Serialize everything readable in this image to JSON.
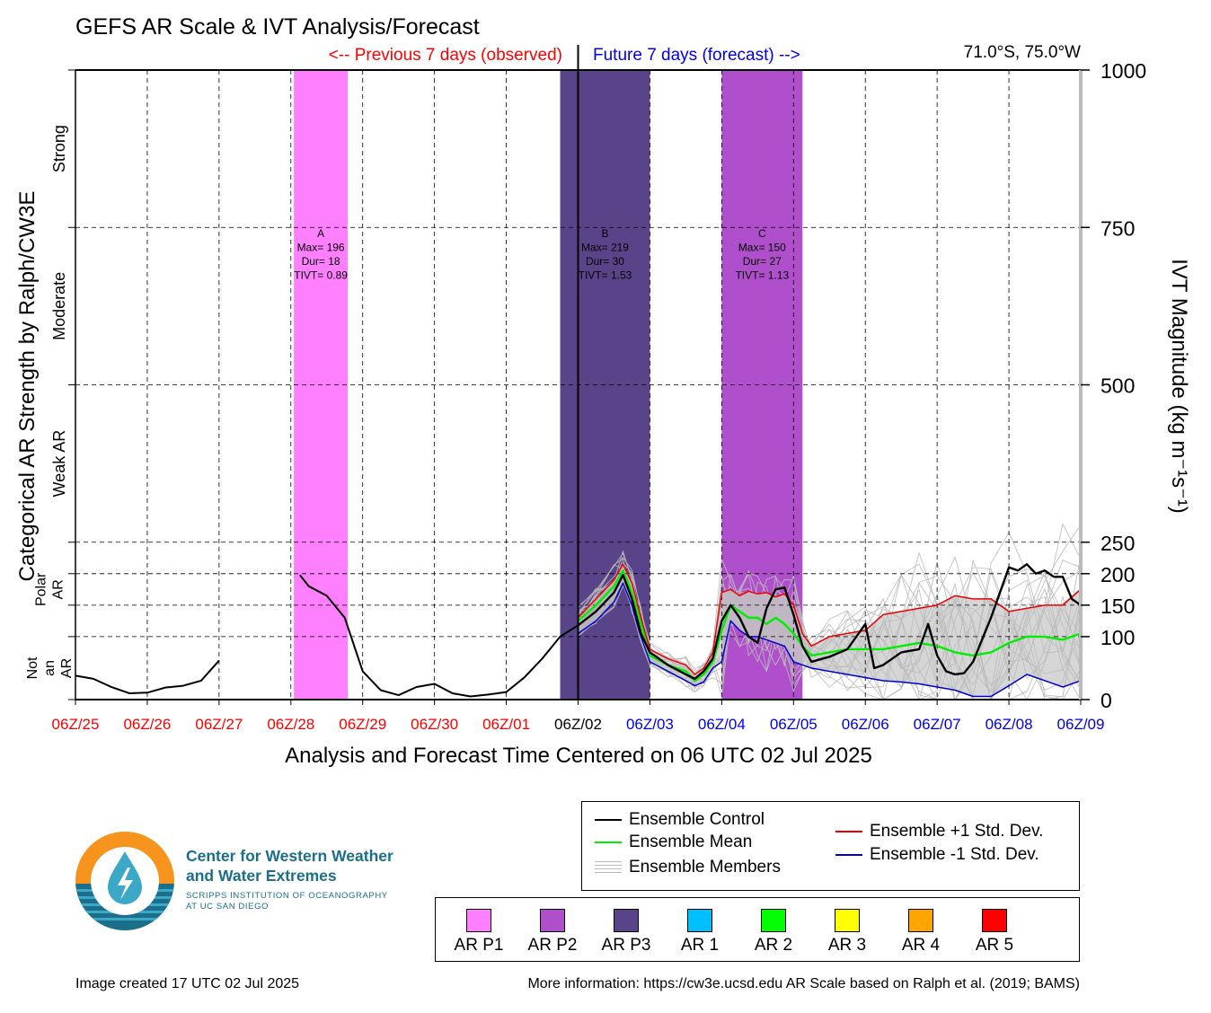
{
  "title": "GEFS AR Scale & IVT Analysis/Forecast",
  "location": "71.0°S, 75.0°W",
  "past_label": "<-- Previous 7 days (observed)",
  "future_label": "Future 7 days (forecast) -->",
  "left_axis_title": "Categorical AR Strength by Ralph/CW3E",
  "right_axis_title": "IVT Magnitude (kg m⁻¹s⁻¹)",
  "x_axis_title": "Analysis and Forecast Time Centered on 06 UTC 02 Jul 2025",
  "categories_left": [
    {
      "label": "Not an AR",
      "lo": 0,
      "hi": 100
    },
    {
      "label": "Polar AR",
      "lo": 100,
      "hi": 250
    },
    {
      "label": "Weak AR",
      "lo": 250,
      "hi": 500
    },
    {
      "label": "Moderate",
      "lo": 500,
      "hi": 750
    },
    {
      "label": "Strong",
      "lo": 750,
      "hi": 1000
    }
  ],
  "colors": {
    "past": "#ff0000",
    "future": "#0000ee",
    "now": "#000000",
    "control": "#000000",
    "mean": "#00ee00",
    "plus_sd": "#ee0000",
    "minus_sd": "#0000cc",
    "members": "#bbbbbb",
    "spread": "#cccccc"
  },
  "chart_data": {
    "type": "line",
    "x_unit": "hours since 06Z/25 Jun 2025",
    "x_ticks": [
      {
        "label": "06Z/25",
        "hour": 0,
        "color": "past"
      },
      {
        "label": "06Z/26",
        "hour": 24,
        "color": "past"
      },
      {
        "label": "06Z/27",
        "hour": 48,
        "color": "past"
      },
      {
        "label": "06Z/28",
        "hour": 72,
        "color": "past"
      },
      {
        "label": "06Z/29",
        "hour": 96,
        "color": "past"
      },
      {
        "label": "06Z/30",
        "hour": 120,
        "color": "past"
      },
      {
        "label": "06Z/01",
        "hour": 144,
        "color": "past"
      },
      {
        "label": "06Z/02",
        "hour": 168,
        "color": "now"
      },
      {
        "label": "06Z/03",
        "hour": 192,
        "color": "future"
      },
      {
        "label": "06Z/04",
        "hour": 216,
        "color": "future"
      },
      {
        "label": "06Z/05",
        "hour": 240,
        "color": "future"
      },
      {
        "label": "06Z/06",
        "hour": 264,
        "color": "future"
      },
      {
        "label": "06Z/07",
        "hour": 288,
        "color": "future"
      },
      {
        "label": "06Z/08",
        "hour": 312,
        "color": "future"
      },
      {
        "label": "06Z/09",
        "hour": 336,
        "color": "future"
      }
    ],
    "y_ticks": [
      0,
      100,
      150,
      200,
      250,
      500,
      750,
      1000
    ],
    "ylim": [
      0,
      1000
    ],
    "xlim": [
      0,
      336
    ],
    "now_hour": 168,
    "ar_events": [
      {
        "id": "A",
        "start": 73,
        "end": 91,
        "category": "AR P1",
        "color": "#ff80ff",
        "max": 196,
        "dur": 18,
        "tivt": 0.89,
        "text": [
          "A",
          "Max= 196",
          "Dur= 18",
          "TIVT= 0.89"
        ]
      },
      {
        "id": "B",
        "start": 162,
        "end": 192,
        "category": "AR P3",
        "color": "#5a4489",
        "max": 219,
        "dur": 30,
        "tivt": 1.53,
        "text": [
          "B",
          "Max= 219",
          "Dur= 30",
          "TIVT= 1.53"
        ]
      },
      {
        "id": "C",
        "start": 216,
        "end": 243,
        "category": "AR P2",
        "color": "#b04fcc",
        "max": 150,
        "dur": 27,
        "tivt": 1.13,
        "text": [
          "C",
          "Max= 150",
          "Dur= 27",
          "TIVT= 1.13"
        ]
      }
    ],
    "observed": {
      "name": "Ensemble Control",
      "segments": [
        [
          [
            0,
            38
          ],
          [
            6,
            33
          ],
          [
            12,
            20
          ],
          [
            18,
            10
          ],
          [
            24,
            11
          ],
          [
            30,
            19
          ],
          [
            36,
            22
          ],
          [
            42,
            30
          ],
          [
            48,
            62
          ]
        ],
        [
          [
            75,
            198
          ],
          [
            78,
            180
          ],
          [
            84,
            165
          ],
          [
            90,
            130
          ],
          [
            96,
            45
          ],
          [
            102,
            15
          ],
          [
            108,
            7
          ],
          [
            114,
            20
          ],
          [
            120,
            25
          ],
          [
            126,
            10
          ],
          [
            132,
            5
          ],
          [
            138,
            8
          ],
          [
            144,
            12
          ],
          [
            150,
            35
          ],
          [
            156,
            65
          ],
          [
            162,
            100
          ],
          [
            168,
            118
          ]
        ]
      ]
    },
    "series": [
      {
        "name": "Ensemble Mean",
        "color_key": "mean",
        "points": [
          [
            168,
            125
          ],
          [
            174,
            150
          ],
          [
            180,
            180
          ],
          [
            183,
            205
          ],
          [
            186,
            170
          ],
          [
            189,
            120
          ],
          [
            192,
            70
          ],
          [
            198,
            55
          ],
          [
            204,
            45
          ],
          [
            207,
            30
          ],
          [
            210,
            40
          ],
          [
            213,
            60
          ],
          [
            216,
            110
          ],
          [
            219,
            150
          ],
          [
            222,
            140
          ],
          [
            225,
            130
          ],
          [
            228,
            130
          ],
          [
            231,
            120
          ],
          [
            234,
            130
          ],
          [
            237,
            120
          ],
          [
            240,
            105
          ],
          [
            243,
            85
          ],
          [
            246,
            70
          ],
          [
            252,
            75
          ],
          [
            258,
            80
          ],
          [
            264,
            80
          ],
          [
            270,
            80
          ],
          [
            276,
            85
          ],
          [
            282,
            90
          ],
          [
            288,
            85
          ],
          [
            294,
            75
          ],
          [
            300,
            70
          ],
          [
            306,
            75
          ],
          [
            312,
            90
          ],
          [
            318,
            100
          ],
          [
            324,
            100
          ],
          [
            330,
            95
          ],
          [
            336,
            105
          ]
        ]
      },
      {
        "name": "Ensemble +1 Std. Dev.",
        "color_key": "plus_sd",
        "points": [
          [
            168,
            130
          ],
          [
            174,
            160
          ],
          [
            180,
            190
          ],
          [
            183,
            215
          ],
          [
            186,
            185
          ],
          [
            189,
            130
          ],
          [
            192,
            80
          ],
          [
            198,
            65
          ],
          [
            204,
            55
          ],
          [
            207,
            40
          ],
          [
            210,
            50
          ],
          [
            213,
            75
          ],
          [
            216,
            170
          ],
          [
            219,
            175
          ],
          [
            222,
            165
          ],
          [
            225,
            172
          ],
          [
            228,
            168
          ],
          [
            231,
            170
          ],
          [
            234,
            163
          ],
          [
            237,
            168
          ],
          [
            240,
            150
          ],
          [
            243,
            105
          ],
          [
            246,
            85
          ],
          [
            252,
            100
          ],
          [
            258,
            105
          ],
          [
            264,
            110
          ],
          [
            270,
            135
          ],
          [
            276,
            140
          ],
          [
            282,
            145
          ],
          [
            288,
            150
          ],
          [
            294,
            165
          ],
          [
            300,
            160
          ],
          [
            306,
            160
          ],
          [
            312,
            140
          ],
          [
            318,
            145
          ],
          [
            324,
            150
          ],
          [
            330,
            150
          ],
          [
            336,
            175
          ]
        ]
      },
      {
        "name": "Ensemble -1 Std. Dev.",
        "color_key": "minus_sd",
        "points": [
          [
            168,
            105
          ],
          [
            174,
            125
          ],
          [
            180,
            155
          ],
          [
            183,
            185
          ],
          [
            186,
            150
          ],
          [
            189,
            100
          ],
          [
            192,
            60
          ],
          [
            198,
            45
          ],
          [
            204,
            30
          ],
          [
            207,
            22
          ],
          [
            210,
            28
          ],
          [
            213,
            50
          ],
          [
            216,
            60
          ],
          [
            219,
            125
          ],
          [
            222,
            110
          ],
          [
            225,
            100
          ],
          [
            228,
            100
          ],
          [
            231,
            95
          ],
          [
            234,
            90
          ],
          [
            237,
            85
          ],
          [
            240,
            60
          ],
          [
            243,
            55
          ],
          [
            246,
            50
          ],
          [
            252,
            45
          ],
          [
            258,
            40
          ],
          [
            264,
            35
          ],
          [
            270,
            30
          ],
          [
            276,
            28
          ],
          [
            282,
            25
          ],
          [
            288,
            20
          ],
          [
            294,
            15
          ],
          [
            300,
            5
          ],
          [
            306,
            5
          ],
          [
            312,
            22
          ],
          [
            318,
            40
          ],
          [
            324,
            30
          ],
          [
            330,
            20
          ],
          [
            336,
            30
          ]
        ]
      },
      {
        "name": "Ensemble Control",
        "color_key": "control",
        "points": [
          [
            168,
            118
          ],
          [
            174,
            140
          ],
          [
            180,
            170
          ],
          [
            183,
            198
          ],
          [
            186,
            160
          ],
          [
            189,
            105
          ],
          [
            192,
            75
          ],
          [
            198,
            55
          ],
          [
            204,
            40
          ],
          [
            207,
            33
          ],
          [
            210,
            45
          ],
          [
            213,
            65
          ],
          [
            216,
            125
          ],
          [
            219,
            150
          ],
          [
            222,
            130
          ],
          [
            225,
            100
          ],
          [
            228,
            90
          ],
          [
            231,
            145
          ],
          [
            234,
            175
          ],
          [
            237,
            178
          ],
          [
            240,
            135
          ],
          [
            243,
            85
          ],
          [
            246,
            60
          ],
          [
            252,
            68
          ],
          [
            258,
            80
          ],
          [
            261,
            100
          ],
          [
            264,
            120
          ],
          [
            267,
            50
          ],
          [
            270,
            55
          ],
          [
            273,
            65
          ],
          [
            276,
            75
          ],
          [
            282,
            80
          ],
          [
            285,
            120
          ],
          [
            288,
            70
          ],
          [
            291,
            45
          ],
          [
            294,
            40
          ],
          [
            297,
            42
          ],
          [
            300,
            60
          ],
          [
            306,
            130
          ],
          [
            309,
            170
          ],
          [
            312,
            210
          ],
          [
            315,
            205
          ],
          [
            318,
            215
          ],
          [
            321,
            200
          ],
          [
            324,
            205
          ],
          [
            327,
            195
          ],
          [
            330,
            195
          ],
          [
            333,
            160
          ],
          [
            336,
            150
          ]
        ]
      }
    ],
    "members_name": "Ensemble Members",
    "legend": [
      "Ensemble Control",
      "Ensemble Mean",
      "Ensemble Members",
      "Ensemble +1 Std. Dev.",
      "Ensemble -1 Std. Dev."
    ]
  },
  "category_legend": [
    {
      "label": "AR P1",
      "color": "#ff80ff"
    },
    {
      "label": "AR P2",
      "color": "#b04fcc"
    },
    {
      "label": "AR P3",
      "color": "#5a4489"
    },
    {
      "label": "AR 1",
      "color": "#00bfff"
    },
    {
      "label": "AR 2",
      "color": "#00ff00"
    },
    {
      "label": "AR 3",
      "color": "#ffff00"
    },
    {
      "label": "AR 4",
      "color": "#ffa500"
    },
    {
      "label": "AR 5",
      "color": "#ff0000"
    }
  ],
  "logo": {
    "line1": "Center for Western Weather",
    "line2": "and Water Extremes",
    "sub1": "SCRIPPS INSTITUTION OF OCEANOGRAPHY",
    "sub2": "AT UC SAN DIEGO",
    "orange": "#f7941d",
    "teal": "#1b6f8a",
    "light_teal": "#3ba8c8"
  },
  "footer_left": "Image created 17 UTC 02 Jul 2025",
  "footer_right": "More information: https://cw3e.ucsd.edu AR Scale based on Ralph et al. (2019; BAMS)"
}
